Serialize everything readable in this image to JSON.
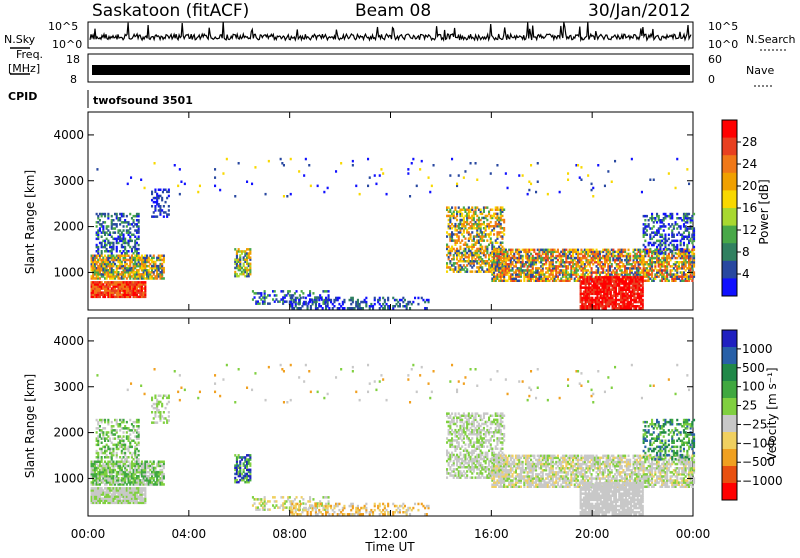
{
  "header": {
    "station": "Saskatoon (fitACF)",
    "beam": "Beam 08",
    "date": "30/Jan/2012"
  },
  "top_panels": {
    "nsky_label": "N.Sky",
    "nsearch_label": "N.Search",
    "freq_label_1": "Freq.",
    "freq_label_2": "[MHz]",
    "nave_label": "Nave",
    "cpid_label": "CPID",
    "cpid_value": "twofsound 3501",
    "noise_ticks": [
      "10^5",
      "10^0"
    ],
    "freq_ticks": [
      "18",
      "8"
    ],
    "nave_ticks": [
      "60",
      "0"
    ]
  },
  "power_colorbar": {
    "label": "Power [dB]",
    "ticks": [
      "28",
      "24",
      "20",
      "16",
      "12",
      "8",
      "4"
    ],
    "colors": [
      "#ff0000",
      "#e84020",
      "#f07818",
      "#f0a000",
      "#f8d800",
      "#a8d830",
      "#48a848",
      "#308060",
      "#2848a0",
      "#1010ff"
    ]
  },
  "velocity_colorbar": {
    "label": "Velocity [m s⁻¹]",
    "ticks": [
      "1000",
      "500",
      "100",
      "25",
      "−25",
      "−100",
      "−500",
      "−1000"
    ],
    "colors": [
      "#2020c0",
      "#2860a8",
      "#208848",
      "#40a840",
      "#80d040",
      "#c8c8c8",
      "#f0d060",
      "#f0a020",
      "#e85010",
      "#ff0000"
    ]
  },
  "chart_data": [
    {
      "type": "heatmap",
      "title": "Power",
      "ylabel": "Slant Range [km]",
      "xlabel": "",
      "x_ticks": [
        "00:00",
        "04:00",
        "08:00",
        "12:00",
        "16:00",
        "20:00",
        "00:00"
      ],
      "y_ticks": [
        "4000",
        "3000",
        "2000",
        "1000"
      ],
      "x_range_hours": [
        0,
        24
      ],
      "y_range_km": [
        180,
        4500
      ],
      "colorbar": "power"
    },
    {
      "type": "heatmap",
      "title": "Velocity",
      "ylabel": "Slant Range [km]",
      "xlabel": "Time UT",
      "x_ticks": [
        "00:00",
        "04:00",
        "08:00",
        "12:00",
        "16:00",
        "20:00",
        "00:00"
      ],
      "y_ticks": [
        "4000",
        "3000",
        "2000",
        "1000"
      ],
      "x_range_hours": [
        0,
        24
      ],
      "y_range_km": [
        180,
        4500
      ],
      "colorbar": "velocity"
    }
  ]
}
